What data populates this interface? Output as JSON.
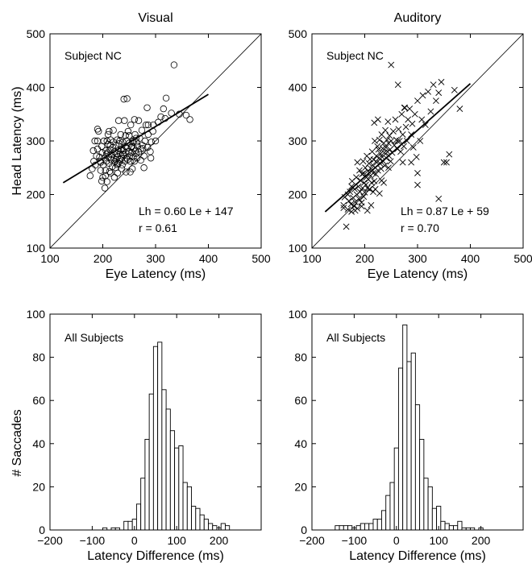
{
  "figure": {
    "ylabel_top": "Head Latency (ms)",
    "ylabel_bottom": "# Saccades"
  },
  "chart_data": [
    {
      "type": "scatter",
      "column_title": "Visual",
      "subject_label": "Subject NC",
      "xlabel": "Eye Latency (ms)",
      "ylabel": "Head Latency (ms)",
      "xlim": [
        100,
        500
      ],
      "ylim": [
        100,
        500
      ],
      "xticks": [
        100,
        200,
        300,
        400,
        500
      ],
      "yticks": [
        100,
        200,
        300,
        400,
        500
      ],
      "marker": "o",
      "equation_text": "Lh = 0.60 Le + 147",
      "r_text": "r = 0.61",
      "fit": {
        "slope": 0.6,
        "intercept": 147,
        "x_range": [
          125,
          400
        ]
      },
      "identity_line": true,
      "points": [
        [
          176,
          235
        ],
        [
          180,
          248
        ],
        [
          183,
          262
        ],
        [
          186,
          255
        ],
        [
          188,
          272
        ],
        [
          190,
          285
        ],
        [
          190,
          300
        ],
        [
          192,
          318
        ],
        [
          194,
          270
        ],
        [
          195,
          262
        ],
        [
          196,
          245
        ],
        [
          198,
          290
        ],
        [
          199,
          278
        ],
        [
          200,
          232
        ],
        [
          201,
          255
        ],
        [
          202,
          300
        ],
        [
          203,
          268
        ],
        [
          204,
          212
        ],
        [
          205,
          245
        ],
        [
          206,
          282
        ],
        [
          207,
          262
        ],
        [
          208,
          224
        ],
        [
          209,
          278
        ],
        [
          210,
          294
        ],
        [
          210,
          312
        ],
        [
          211,
          270
        ],
        [
          212,
          258
        ],
        [
          213,
          243
        ],
        [
          214,
          284
        ],
        [
          215,
          302
        ],
        [
          216,
          265
        ],
        [
          217,
          275
        ],
        [
          218,
          252
        ],
        [
          219,
          288
        ],
        [
          220,
          298
        ],
        [
          221,
          268
        ],
        [
          222,
          280
        ],
        [
          223,
          262
        ],
        [
          224,
          250
        ],
        [
          225,
          292
        ],
        [
          226,
          276
        ],
        [
          227,
          302
        ],
        [
          228,
          270
        ],
        [
          229,
          258
        ],
        [
          230,
          282
        ],
        [
          231,
          295
        ],
        [
          232,
          266
        ],
        [
          233,
          276
        ],
        [
          234,
          312
        ],
        [
          235,
          285
        ],
        [
          236,
          268
        ],
        [
          237,
          255
        ],
        [
          238,
          298
        ],
        [
          239,
          282
        ],
        [
          240,
          274
        ],
        [
          241,
          338
        ],
        [
          242,
          262
        ],
        [
          243,
          290
        ],
        [
          244,
          278
        ],
        [
          245,
          300
        ],
        [
          246,
          286
        ],
        [
          247,
          265
        ],
        [
          248,
          318
        ],
        [
          249,
          280
        ],
        [
          250,
          296
        ],
        [
          251,
          272
        ],
        [
          252,
          262
        ],
        [
          253,
          330
        ],
        [
          254,
          288
        ],
        [
          255,
          278
        ],
        [
          256,
          248
        ],
        [
          257,
          300
        ],
        [
          258,
          270
        ],
        [
          259,
          286
        ],
        [
          260,
          262
        ],
        [
          261,
          312
        ],
        [
          262,
          282
        ],
        [
          263,
          276
        ],
        [
          264,
          298
        ],
        [
          265,
          268
        ],
        [
          266,
          290
        ],
        [
          268,
          280
        ],
        [
          270,
          305
        ],
        [
          272,
          264
        ],
        [
          274,
          320
        ],
        [
          276,
          286
        ],
        [
          278,
          272
        ],
        [
          280,
          300
        ],
        [
          282,
          330
        ],
        [
          284,
          362
        ],
        [
          286,
          312
        ],
        [
          290,
          280
        ],
        [
          292,
          298
        ],
        [
          295,
          318
        ],
        [
          300,
          300
        ],
        [
          305,
          335
        ],
        [
          310,
          345
        ],
        [
          315,
          360
        ],
        [
          320,
          380
        ],
        [
          330,
          352
        ],
        [
          335,
          442
        ],
        [
          345,
          350
        ],
        [
          358,
          348
        ],
        [
          365,
          340
        ],
        [
          240,
          378
        ],
        [
          246,
          379
        ],
        [
          230,
          338
        ],
        [
          215,
          240
        ],
        [
          205,
          235
        ],
        [
          198,
          225
        ],
        [
          182,
          282
        ],
        [
          185,
          300
        ],
        [
          212,
          318
        ],
        [
          222,
          232
        ],
        [
          236,
          248
        ],
        [
          244,
          242
        ],
        [
          252,
          242
        ],
        [
          260,
          340
        ],
        [
          268,
          338
        ],
        [
          286,
          330
        ],
        [
          296,
          330
        ],
        [
          318,
          342
        ],
        [
          190,
          322
        ],
        [
          196,
          260
        ],
        [
          208,
          300
        ],
        [
          220,
          320
        ],
        [
          228,
          240
        ],
        [
          232,
          300
        ],
        [
          250,
          310
        ],
        [
          258,
          298
        ],
        [
          275,
          292
        ],
        [
          285,
          288
        ],
        [
          225,
          265
        ],
        [
          232,
          262
        ],
        [
          245,
          268
        ],
        [
          255,
          290
        ],
        [
          238,
          275
        ],
        [
          227,
          256
        ],
        [
          214,
          292
        ],
        [
          207,
          275
        ],
        [
          243,
          310
        ],
        [
          263,
          305
        ],
        [
          272,
          285
        ],
        [
          278,
          250
        ],
        [
          291,
          268
        ]
      ]
    },
    {
      "type": "scatter",
      "column_title": "Auditory",
      "subject_label": "Subject NC",
      "xlabel": "Eye Latency (ms)",
      "ylabel": "",
      "xlim": [
        100,
        500
      ],
      "ylim": [
        100,
        500
      ],
      "xticks": [
        100,
        200,
        300,
        400,
        500
      ],
      "yticks": [
        100,
        200,
        300,
        400,
        500
      ],
      "marker": "x",
      "equation_text": "Lh = 0.87 Le +  59",
      "r_text": "r = 0.70",
      "fit": {
        "slope": 0.87,
        "intercept": 59,
        "x_range": [
          125,
          400
        ]
      },
      "identity_line": true,
      "points": [
        [
          160,
          180
        ],
        [
          162,
          195
        ],
        [
          165,
          140
        ],
        [
          168,
          172
        ],
        [
          170,
          188
        ],
        [
          172,
          205
        ],
        [
          174,
          182
        ],
        [
          175,
          168
        ],
        [
          176,
          225
        ],
        [
          178,
          194
        ],
        [
          180,
          178
        ],
        [
          181,
          210
        ],
        [
          182,
          186
        ],
        [
          184,
          232
        ],
        [
          185,
          200
        ],
        [
          186,
          174
        ],
        [
          188,
          215
        ],
        [
          189,
          192
        ],
        [
          190,
          245
        ],
        [
          191,
          205
        ],
        [
          192,
          226
        ],
        [
          194,
          185
        ],
        [
          195,
          238
        ],
        [
          196,
          212
        ],
        [
          197,
          262
        ],
        [
          198,
          196
        ],
        [
          199,
          222
        ],
        [
          200,
          204
        ],
        [
          201,
          250
        ],
        [
          202,
          218
        ],
        [
          203,
          232
        ],
        [
          204,
          272
        ],
        [
          205,
          212
        ],
        [
          206,
          244
        ],
        [
          207,
          228
        ],
        [
          208,
          258
        ],
        [
          209,
          210
        ],
        [
          210,
          266
        ],
        [
          211,
          235
        ],
        [
          212,
          248
        ],
        [
          213,
          222
        ],
        [
          214,
          280
        ],
        [
          215,
          255
        ],
        [
          216,
          240
        ],
        [
          217,
          265
        ],
        [
          218,
          225
        ],
        [
          219,
          300
        ],
        [
          220,
          250
        ],
        [
          221,
          238
        ],
        [
          222,
          272
        ],
        [
          223,
          260
        ],
        [
          224,
          290
        ],
        [
          225,
          245
        ],
        [
          226,
          284
        ],
        [
          227,
          268
        ],
        [
          228,
          302
        ],
        [
          229,
          258
        ],
        [
          230,
          276
        ],
        [
          231,
          248
        ],
        [
          232,
          312
        ],
        [
          233,
          270
        ],
        [
          234,
          286
        ],
        [
          235,
          262
        ],
        [
          236,
          296
        ],
        [
          237,
          278
        ],
        [
          238,
          254
        ],
        [
          239,
          320
        ],
        [
          240,
          288
        ],
        [
          241,
          268
        ],
        [
          242,
          302
        ],
        [
          243,
          280
        ],
        [
          244,
          336
        ],
        [
          245,
          296
        ],
        [
          246,
          272
        ],
        [
          247,
          310
        ],
        [
          248,
          284
        ],
        [
          249,
          262
        ],
        [
          250,
          300
        ],
        [
          252,
          278
        ],
        [
          254,
          318
        ],
        [
          256,
          292
        ],
        [
          258,
          340
        ],
        [
          260,
          302
        ],
        [
          262,
          285
        ],
        [
          264,
          322
        ],
        [
          266,
          300
        ],
        [
          268,
          280
        ],
        [
          270,
          350
        ],
        [
          272,
          312
        ],
        [
          274,
          290
        ],
        [
          276,
          362
        ],
        [
          278,
          326
        ],
        [
          280,
          300
        ],
        [
          282,
          340
        ],
        [
          285,
          360
        ],
        [
          288,
          312
        ],
        [
          290,
          332
        ],
        [
          292,
          288
        ],
        [
          295,
          350
        ],
        [
          298,
          270
        ],
        [
          300,
          375
        ],
        [
          305,
          300
        ],
        [
          308,
          340
        ],
        [
          310,
          385
        ],
        [
          315,
          330
        ],
        [
          320,
          392
        ],
        [
          325,
          355
        ],
        [
          330,
          405
        ],
        [
          335,
          375
        ],
        [
          340,
          390
        ],
        [
          345,
          410
        ],
        [
          350,
          260
        ],
        [
          355,
          260
        ],
        [
          360,
          275
        ],
        [
          370,
          395
        ],
        [
          380,
          360
        ],
        [
          340,
          192
        ],
        [
          225,
          340
        ],
        [
          218,
          334
        ],
        [
          250,
          442
        ],
        [
          275,
          362
        ],
        [
          262,
          300
        ],
        [
          300,
          218
        ],
        [
          300,
          240
        ],
        [
          288,
          260
        ],
        [
          272,
          260
        ],
        [
          245,
          250
        ],
        [
          232,
          226
        ],
        [
          212,
          180
        ],
        [
          205,
          170
        ],
        [
          198,
          240
        ],
        [
          186,
          260
        ],
        [
          175,
          215
        ],
        [
          168,
          200
        ],
        [
          263,
          405
        ],
        [
          160,
          175
        ],
        [
          182,
          170
        ],
        [
          194,
          178
        ],
        [
          216,
          205
        ],
        [
          228,
          202
        ],
        [
          236,
          222
        ],
        [
          220,
          210
        ]
      ]
    },
    {
      "type": "bar",
      "column_title": "Visual",
      "subject_label": "All Subjects",
      "xlabel": "Latency Difference (ms)",
      "ylabel": "# Saccades",
      "xlim": [
        -200,
        300
      ],
      "ylim": [
        0,
        100
      ],
      "xticks": [
        -200,
        -100,
        0,
        100,
        200
      ],
      "yticks": [
        0,
        20,
        40,
        60,
        80,
        100
      ],
      "bin_width": 10,
      "bin_centers": [
        -70,
        -60,
        -50,
        -40,
        -30,
        -20,
        -10,
        0,
        10,
        20,
        30,
        40,
        50,
        60,
        70,
        80,
        90,
        100,
        110,
        120,
        130,
        140,
        150,
        160,
        170,
        180,
        190,
        200,
        210,
        220
      ],
      "values": [
        1,
        0,
        1,
        1,
        0,
        4,
        4,
        5,
        12,
        24,
        42,
        63,
        85,
        87,
        65,
        56,
        46,
        38,
        39,
        22,
        20,
        11,
        10,
        7,
        5,
        3,
        2,
        1,
        3,
        2
      ]
    },
    {
      "type": "bar",
      "column_title": "Auditory",
      "subject_label": "All Subjects",
      "xlabel": "Latency Difference (ms)",
      "ylabel": "",
      "xlim": [
        -200,
        300
      ],
      "ylim": [
        0,
        100
      ],
      "xticks": [
        -200,
        -100,
        0,
        100,
        200
      ],
      "yticks": [
        0,
        20,
        40,
        60,
        80,
        100
      ],
      "bin_width": 10,
      "bin_centers": [
        -140,
        -130,
        -120,
        -110,
        -100,
        -90,
        -80,
        -70,
        -60,
        -50,
        -40,
        -30,
        -20,
        -10,
        0,
        10,
        20,
        30,
        40,
        50,
        60,
        70,
        80,
        90,
        100,
        110,
        120,
        130,
        140,
        150,
        160,
        170,
        180,
        190,
        200
      ],
      "values": [
        2,
        2,
        2,
        2,
        1,
        2,
        3,
        3,
        3,
        5,
        5,
        9,
        16,
        22,
        38,
        75,
        95,
        78,
        82,
        58,
        42,
        24,
        20,
        10,
        11,
        4,
        3,
        2,
        2,
        4,
        1,
        1,
        1,
        0,
        1
      ]
    }
  ]
}
